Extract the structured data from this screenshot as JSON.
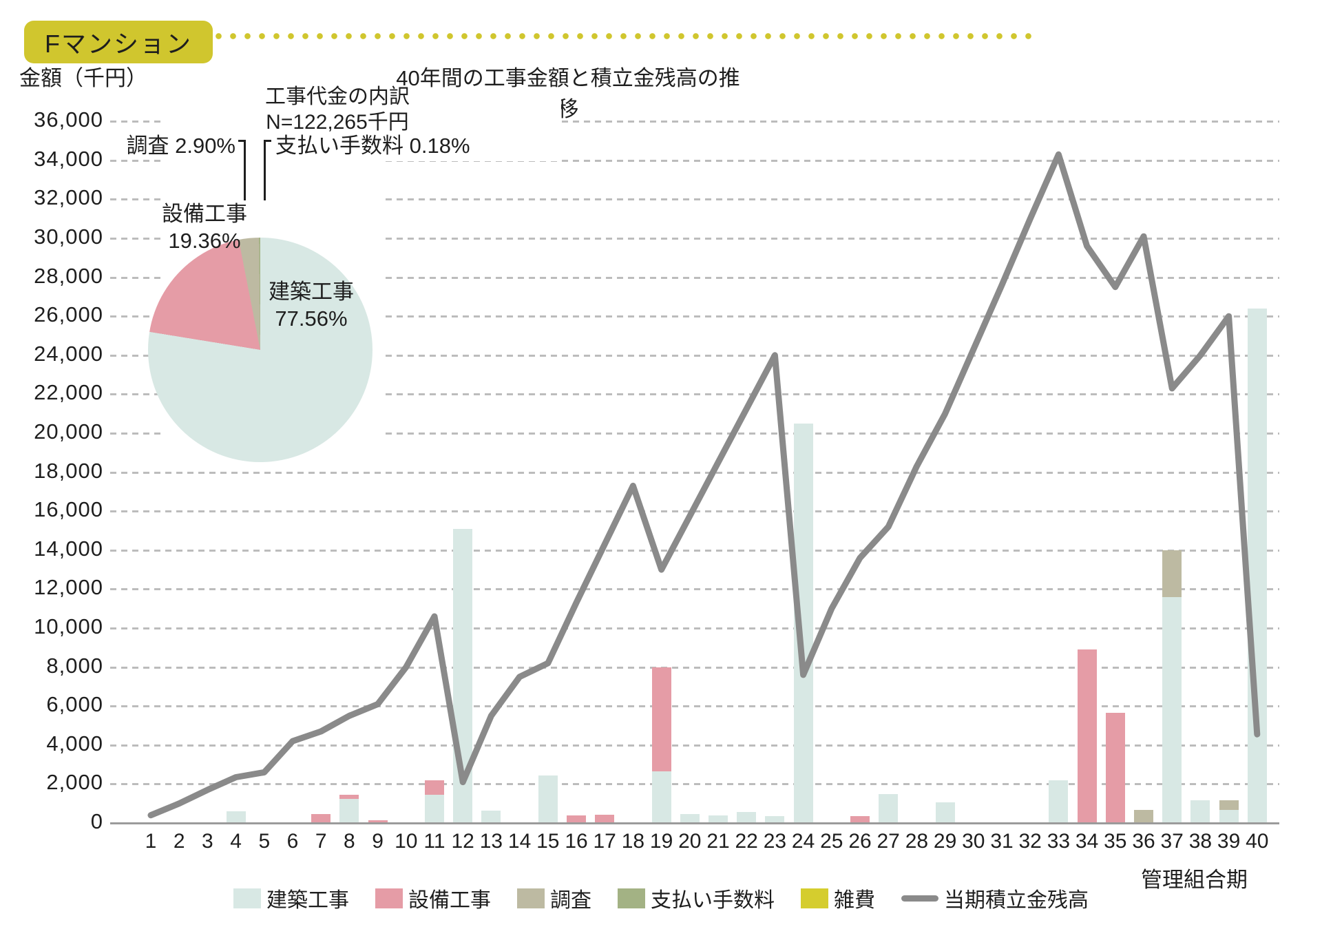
{
  "header": {
    "badge": "Fマンション"
  },
  "y_axis_title": "金額（千円）",
  "x_axis_title": "管理組合期",
  "colors": {
    "teal": "#d8e8e4",
    "pink": "#e59ca6",
    "tan": "#bdbaa2",
    "olive": "#a3b284",
    "yellow": "#d5cd2e",
    "gray_line": "#8a8a8a",
    "accent_badge": "#d0c62e",
    "grid": "#bcbcbc",
    "axis": "#9b9b9b",
    "text": "#1e1e1e"
  },
  "chart_data": {
    "type": [
      "stacked-bar",
      "line",
      "pie"
    ],
    "title": "40年間の工事金額と積立金残高の推移",
    "ylabel": "金額（千円）",
    "xlabel": "管理組合期",
    "ylim": [
      0,
      36000
    ],
    "ystep": 2000,
    "years": 40,
    "grid": "dashed-horizontal",
    "bar_series_order": [
      "建築工事",
      "設備工事",
      "調査",
      "支払い手数料",
      "雑費"
    ],
    "bar_series_colors": {
      "建築工事": "teal",
      "設備工事": "pink",
      "調査": "tan",
      "支払い手数料": "olive",
      "雑費": "yellow"
    },
    "bars": {
      "建築工事": {
        "4": 600,
        "8": 1250,
        "11": 1450,
        "12": 15100,
        "13": 650,
        "15": 2450,
        "19": 2650,
        "20": 450,
        "21": 390,
        "22": 560,
        "23": 350,
        "24": 20500,
        "27": 1500,
        "29": 1050,
        "33": 2200,
        "37": 11600,
        "38": 1150,
        "39": 670,
        "40": 26400
      },
      "設備工事": {
        "7": 450,
        "8": 200,
        "9": 150,
        "11": 750,
        "16": 400,
        "17": 420,
        "19": 5350,
        "26": 350,
        "34": 8900,
        "35": 5650
      },
      "調査": {
        "36": 670,
        "37": 2400,
        "39": 500
      },
      "支払い手数料": {},
      "雑費": {}
    },
    "line_series": {
      "name": "当期積立金残高",
      "values": [
        400,
        1000,
        1700,
        2350,
        2600,
        4200,
        4700,
        5500,
        6100,
        8000,
        10600,
        2100,
        5500,
        7500,
        8200,
        11300,
        14300,
        17300,
        13000,
        15750,
        18500,
        21250,
        24000,
        7600,
        11000,
        13600,
        15200,
        18300,
        21000,
        24300,
        27600,
        31000,
        34300,
        29600,
        27500,
        30100,
        22300,
        24000,
        26000,
        4550
      ]
    },
    "pie": {
      "title_line1": "工事代金の内訳",
      "title_line2": "N=122,265千円",
      "slices": [
        {
          "label": "建築工事",
          "pct": 77.56,
          "color": "teal",
          "display": "建築工事",
          "display_pct": "77.56%"
        },
        {
          "label": "設備工事",
          "pct": 19.36,
          "color": "pink",
          "display": "設備工事",
          "display_pct": "19.36%"
        },
        {
          "label": "調査",
          "pct": 2.9,
          "color": "tan",
          "callout": "調査 2.90%"
        },
        {
          "label": "支払い手数料",
          "pct": 0.18,
          "color": "olive",
          "callout": "支払い手数料 0.18%"
        }
      ]
    },
    "legend": [
      {
        "label": "建築工事",
        "color": "teal",
        "kind": "swatch"
      },
      {
        "label": "設備工事",
        "color": "pink",
        "kind": "swatch"
      },
      {
        "label": "調査",
        "color": "tan",
        "kind": "swatch"
      },
      {
        "label": "支払い手数料",
        "color": "olive",
        "kind": "swatch"
      },
      {
        "label": "雑費",
        "color": "yellow",
        "kind": "swatch"
      },
      {
        "label": "当期積立金残高",
        "color": "gray_line",
        "kind": "line"
      }
    ],
    "legend_position": "bottom-center"
  }
}
